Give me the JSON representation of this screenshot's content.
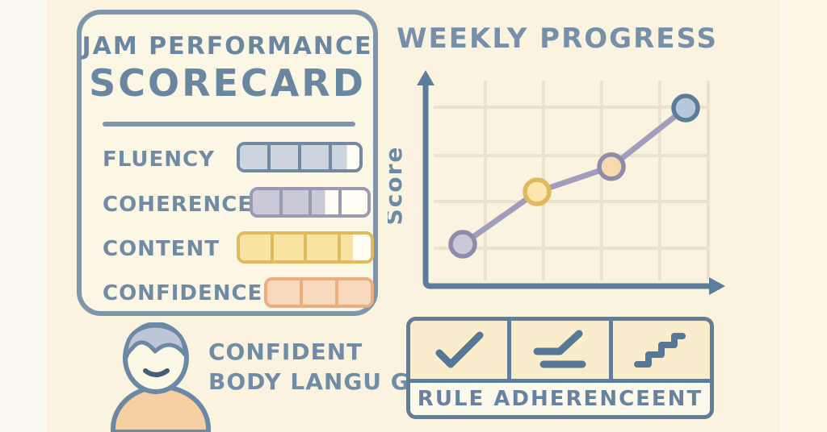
{
  "scorecard": {
    "title_line1": "JAM PERFORMANCE",
    "title_line2": "SCORECARD",
    "metrics": [
      {
        "label": "FLUENCY",
        "segments": 4,
        "filled": 3.55,
        "fill_color": "#ccd4e0",
        "border_color": "#7189a2"
      },
      {
        "label": "COHERENCE",
        "segments": 4,
        "filled": 2.5,
        "fill_color": "#c9c9d8",
        "border_color": "#9a9ab0"
      },
      {
        "label": "CONTENT",
        "segments": 4,
        "filled": 3.4,
        "fill_color": "#f9e3a4",
        "border_color": "#e2ba5e"
      },
      {
        "label": "CONFIDENCE",
        "segments": 3,
        "filled": 3,
        "fill_color": "#f9d9bb",
        "border_color": "#ecad81"
      }
    ]
  },
  "chart": {
    "title": "WEEKLY PROGRESS",
    "ylabel": "Score"
  },
  "chart_data": {
    "type": "line",
    "title": "WEEKLY PROGRESS",
    "xlabel": "",
    "ylabel": "Score",
    "x": [
      1,
      2,
      3,
      4
    ],
    "values": [
      2,
      4.5,
      5.7,
      8.5
    ],
    "ylim": [
      0,
      10
    ],
    "grid": true,
    "legend": false,
    "line_color": "#a29dbd",
    "axis_color": "#5c7d9b",
    "markers": [
      {
        "fill": "#c9c8d9",
        "stroke": "#8e8caa"
      },
      {
        "fill": "#fbe7af",
        "stroke": "#e1b85c"
      },
      {
        "fill": "#f8d9ae",
        "stroke": "#8e8caa"
      },
      {
        "fill": "#b8c8da",
        "stroke": "#5a7b99"
      }
    ]
  },
  "body_language": {
    "line1": "CONFIDENT",
    "line2": "BODY LANGU GE"
  },
  "rule_panel": {
    "caption": "RULE ADHERENCEENT",
    "icons": [
      "checkmark-icon",
      "rising-line-icon",
      "stairs-icon"
    ]
  },
  "colors": {
    "background": "#faf3e0",
    "panel_border": "#7e95ab",
    "heading_text": "#6a87a2",
    "icon_stroke": "#567795",
    "person_shirt": "#f6cfa2",
    "person_hair": "#bcc6d6",
    "cell_fill": "#faedcb"
  }
}
